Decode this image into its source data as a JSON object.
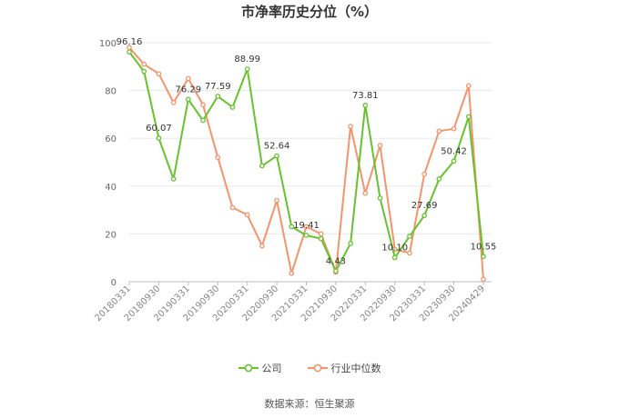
{
  "chart_data": {
    "type": "line",
    "title": "市净率历史分位（%）",
    "ylim": [
      0,
      100
    ],
    "yticks": [
      0,
      20,
      40,
      60,
      80,
      100
    ],
    "grid": true,
    "legend_position": "bottom",
    "x_tick_labels": [
      "20180331",
      "20180930",
      "20190331",
      "20190930",
      "20200331",
      "20200930",
      "20210331",
      "20210930",
      "20220331",
      "20220930",
      "20230331",
      "20230930",
      "20240429"
    ],
    "x_tick_indices": [
      0,
      2,
      4,
      6,
      8,
      10,
      12,
      14,
      16,
      18,
      20,
      22,
      24
    ],
    "point_count": 25,
    "series": [
      {
        "name": "公司",
        "color": "#66c22e",
        "values": [
          96.16,
          88.0,
          60.07,
          43.0,
          76.29,
          67.5,
          77.59,
          73.0,
          88.99,
          48.5,
          52.64,
          23.0,
          19.41,
          18.0,
          4.43,
          16.0,
          73.81,
          35.0,
          10.1,
          19.0,
          27.69,
          43.0,
          50.42,
          69.0,
          10.55
        ],
        "labels": [
          "96.16",
          null,
          "60.07",
          null,
          "76.29",
          null,
          "77.59",
          null,
          "88.99",
          null,
          "52.64",
          null,
          "19.41",
          null,
          "4.43",
          null,
          "73.81",
          null,
          "10.10",
          null,
          "27.69",
          null,
          "50.42",
          null,
          "10.55"
        ]
      },
      {
        "name": "行业中位数",
        "color": "#f4946b",
        "values": [
          98.0,
          91.0,
          87.0,
          75.0,
          85.0,
          74.0,
          52.0,
          31.0,
          28.0,
          15.0,
          34.0,
          3.5,
          23.0,
          20.0,
          4.0,
          65.0,
          37.0,
          57.0,
          13.5,
          12.0,
          45.0,
          63.0,
          64.0,
          82.0,
          1.0
        ]
      }
    ]
  },
  "source_note": "数据来源：恒生聚源"
}
